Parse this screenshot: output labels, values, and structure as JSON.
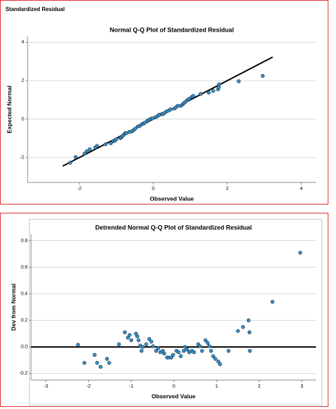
{
  "header": "Standardized Residual",
  "chart_data": [
    {
      "type": "scatter",
      "title": "Normal Q-Q Plot of Standardized Residual",
      "x_label": "Observed Value",
      "y_label": "Expected Normal",
      "color": "#3b8fc6",
      "edge_color": "#17384f",
      "grid": true,
      "xlim": [
        -3.4,
        4.4
      ],
      "ylim": [
        -3.3,
        4.3
      ],
      "xticks": [
        -2,
        0,
        2,
        4
      ],
      "yticks": [
        -2,
        0,
        2,
        4
      ],
      "reference_line": {
        "x": [
          -2.45,
          3.23
        ],
        "y": [
          -2.45,
          3.23
        ]
      },
      "x": [
        -2.25,
        -2.1,
        -1.86,
        -1.8,
        -1.72,
        -1.57,
        -1.52,
        -1.29,
        -1.15,
        -1.08,
        -1.04,
        -1.0,
        -0.89,
        -0.86,
        -0.83,
        -0.79,
        -0.76,
        -0.73,
        -0.65,
        -0.58,
        -0.53,
        -0.49,
        -0.42,
        -0.37,
        -0.32,
        -0.26,
        -0.23,
        -0.16,
        -0.11,
        -0.06,
        -0.02,
        0.06,
        0.11,
        0.16,
        0.23,
        0.26,
        0.31,
        0.36,
        0.42,
        0.47,
        0.57,
        0.61,
        0.66,
        0.74,
        0.79,
        0.83,
        0.87,
        0.92,
        0.97,
        1.04,
        1.08,
        1.28,
        1.5,
        1.62,
        1.75,
        1.77,
        1.78,
        2.31,
        2.96
      ],
      "values": [
        -2.27,
        -1.98,
        -1.8,
        -1.68,
        -1.57,
        -1.48,
        -1.4,
        -1.31,
        -1.26,
        -1.15,
        -1.13,
        -1.05,
        -0.99,
        -0.94,
        -0.88,
        -0.8,
        -0.73,
        -0.73,
        -0.67,
        -0.64,
        -0.57,
        -0.5,
        -0.39,
        -0.36,
        -0.28,
        -0.23,
        -0.18,
        -0.08,
        -0.03,
        0.02,
        0.04,
        0.09,
        0.15,
        0.23,
        0.26,
        0.26,
        0.33,
        0.4,
        0.45,
        0.51,
        0.55,
        0.61,
        0.69,
        0.69,
        0.76,
        0.83,
        0.9,
        0.99,
        1.06,
        1.15,
        1.21,
        1.31,
        1.38,
        1.47,
        1.55,
        1.66,
        1.81,
        1.97,
        2.25
      ]
    },
    {
      "type": "scatter",
      "title": "Detrended Normal Q-Q Plot of Standardized Residual",
      "x_label": "Observed Value",
      "y_label": "Dev from Normal",
      "color": "#3b8fc6",
      "edge_color": "#17384f",
      "grid": true,
      "xlim": [
        -3.35,
        3.33
      ],
      "ylim": [
        -0.25,
        0.85
      ],
      "xticks": [
        -3,
        -2,
        -1,
        0,
        1,
        2,
        3
      ],
      "yticks": [
        -0.2,
        {
          "value": 0,
          "label": "0.0"
        },
        0.2,
        0.4,
        0.6,
        0.8
      ],
      "reference_line": {
        "y": 0
      },
      "x": [
        -2.25,
        -2.1,
        -1.86,
        -1.8,
        -1.72,
        -1.57,
        -1.52,
        -1.29,
        -1.15,
        -1.08,
        -1.04,
        -1.0,
        -0.89,
        -0.86,
        -0.83,
        -0.79,
        -0.76,
        -0.73,
        -0.65,
        -0.58,
        -0.53,
        -0.49,
        -0.42,
        -0.37,
        -0.32,
        -0.26,
        -0.23,
        -0.16,
        -0.11,
        -0.06,
        -0.02,
        0.06,
        0.11,
        0.16,
        0.23,
        0.26,
        0.31,
        0.36,
        0.42,
        0.47,
        0.57,
        0.61,
        0.66,
        0.74,
        0.79,
        0.83,
        0.87,
        0.92,
        0.97,
        1.04,
        1.08,
        1.28,
        1.5,
        1.62,
        1.75,
        1.77,
        1.78,
        2.31,
        2.96
      ],
      "values": [
        0.016,
        -0.12,
        -0.06,
        -0.12,
        -0.15,
        -0.09,
        -0.12,
        0.02,
        0.11,
        0.07,
        0.09,
        0.05,
        0.1,
        0.08,
        0.05,
        0.01,
        -0.03,
        0,
        0.02,
        0.06,
        0.04,
        0.005,
        -0.03,
        -0.01,
        -0.04,
        -0.03,
        -0.05,
        -0.08,
        -0.08,
        -0.08,
        -0.06,
        -0.03,
        -0.04,
        -0.07,
        -0.03,
        0,
        -0.02,
        -0.04,
        -0.03,
        -0.04,
        0.02,
        0.005,
        -0.03,
        0.05,
        0.03,
        0.005,
        -0.03,
        -0.07,
        -0.09,
        -0.11,
        -0.13,
        -0.03,
        0.12,
        0.15,
        0.2,
        0.11,
        -0.03,
        0.34,
        0.71
      ]
    }
  ]
}
